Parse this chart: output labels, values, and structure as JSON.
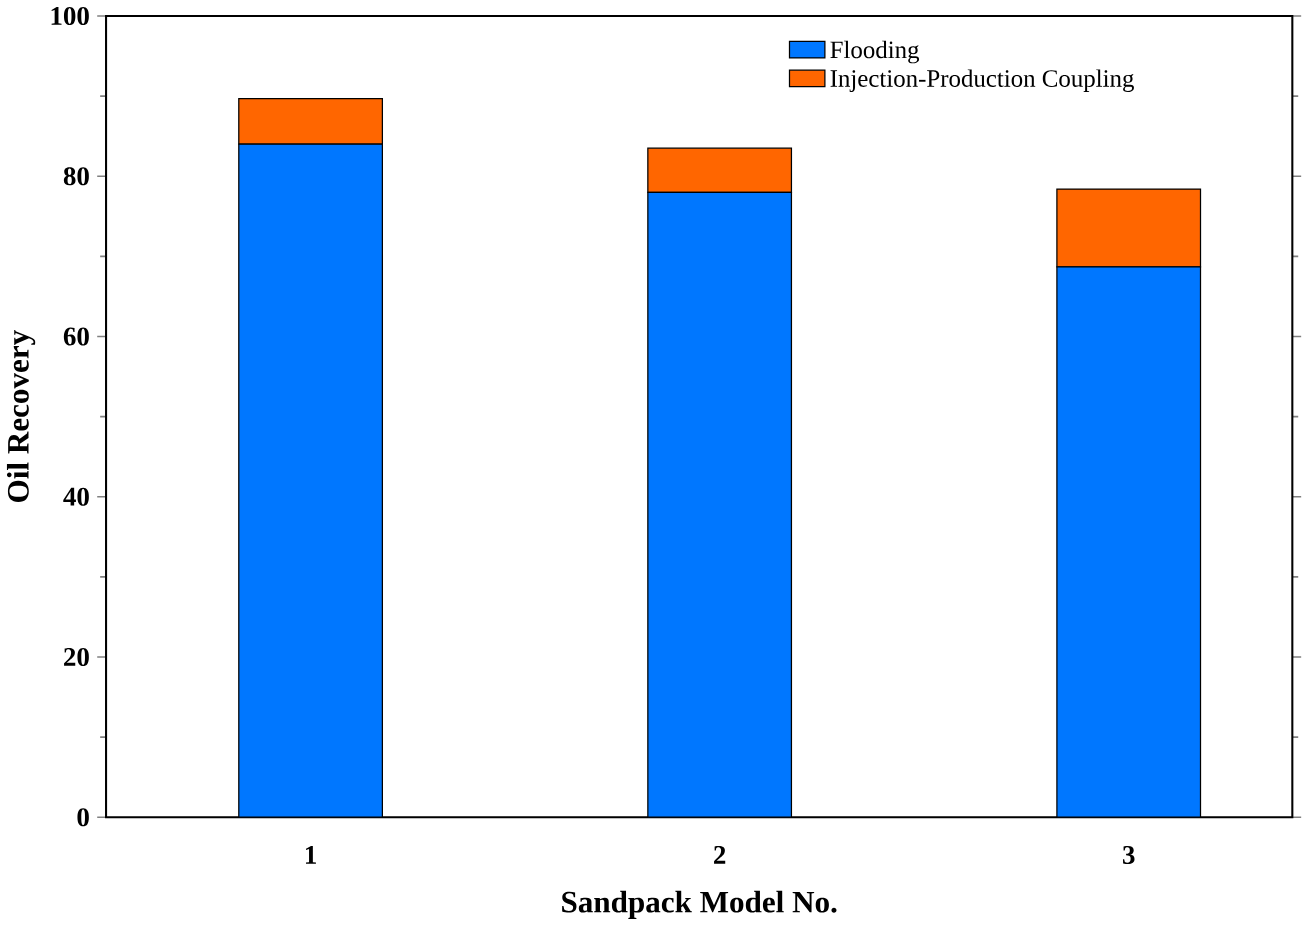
{
  "chart_data": {
    "type": "bar",
    "stacked": true,
    "xlabel": "Sandpack Model No.",
    "ylabel": "Oil Recovery",
    "categories": [
      "1",
      "2",
      "3"
    ],
    "series": [
      {
        "name": "Flooding",
        "color": "#0077ff",
        "values": [
          84,
          78,
          68.7
        ]
      },
      {
        "name": "Injection-Production Coupling",
        "color": "#ff6600",
        "values": [
          5.7,
          5.5,
          9.7
        ]
      }
    ],
    "ylim": [
      0,
      100
    ],
    "yticks": [
      0,
      20,
      40,
      60,
      80,
      100
    ],
    "legend": "top right"
  }
}
